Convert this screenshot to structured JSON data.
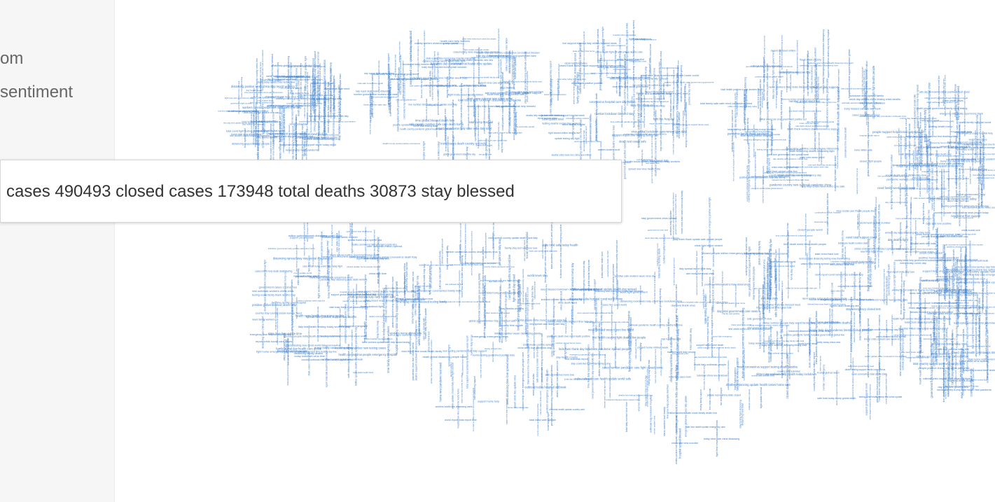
{
  "sidebar": {
    "text_1": "om",
    "text_2": "sentiment"
  },
  "tooltip": {
    "text": "cases 490493 closed cases 173948 total deaths 30873 stay blessed"
  },
  "colors": {
    "word": "#3f7fc9",
    "background": "#ffffff",
    "sidebar": "#f6f6f6"
  },
  "cloud_words": [
    "deaths",
    "cases",
    "stay",
    "blessed",
    "total",
    "closed",
    "coronavirus",
    "covid",
    "people",
    "world",
    "health",
    "lockdown",
    "home",
    "news",
    "government",
    "virus",
    "support",
    "care",
    "family",
    "time",
    "help",
    "china",
    "update",
    "day",
    "pandemic",
    "safe",
    "test",
    "testing",
    "positive",
    "hospital",
    "state",
    "country",
    "spread",
    "italy",
    "india",
    "trump",
    "death",
    "million",
    "week",
    "social",
    "distancing",
    "emergency",
    "workers",
    "need",
    "today",
    "new",
    "live",
    "thank",
    "love",
    "fight",
    "crisis",
    "outbreak",
    "number",
    "report",
    "global"
  ]
}
